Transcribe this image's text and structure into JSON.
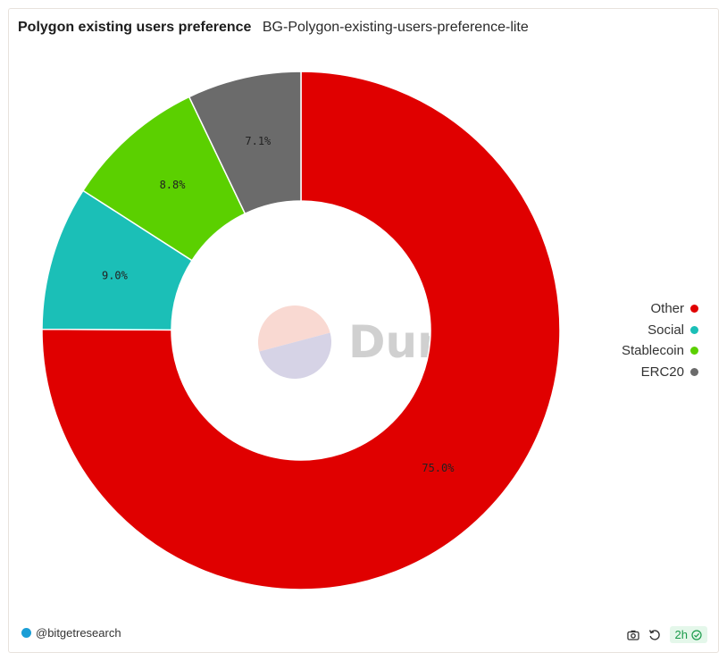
{
  "header": {
    "title": "Polygon existing users preference",
    "subtitle": "BG-Polygon-existing-users-preference-lite"
  },
  "chart_data": {
    "type": "pie",
    "donut": true,
    "categories": [
      "Other",
      "Social",
      "Stablecoin",
      "ERC20"
    ],
    "values": [
      75.0,
      9.0,
      8.8,
      7.1
    ],
    "labels": [
      "75.0%",
      "9.0%",
      "8.8%",
      "7.1%"
    ],
    "colors": [
      "#e00000",
      "#1bbfb7",
      "#5bd000",
      "#6b6b6b"
    ],
    "legend_position": "right"
  },
  "watermark": {
    "text": "Dune"
  },
  "footer": {
    "author": "@bitgetresearch",
    "refresh_badge": "2h",
    "icons": [
      "camera-icon",
      "refresh-icon",
      "check-circle-icon"
    ]
  }
}
